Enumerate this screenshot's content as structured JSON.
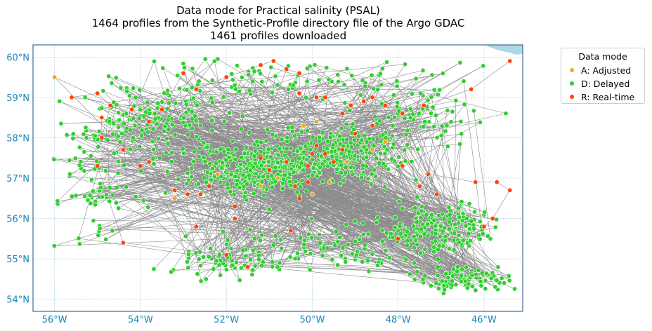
{
  "title": {
    "line1": "Data mode for Practical salinity (PSAL)",
    "line2": "1464 profiles from the Synthetic-Profile directory file of the Argo GDAC",
    "line3": "1461 profiles downloaded"
  },
  "legend": {
    "title": "Data mode",
    "items": [
      {
        "label": "A: Adjusted",
        "color": "#f5a623"
      },
      {
        "label": "D: Delayed",
        "color": "#32cd32"
      },
      {
        "label": "R: Real-time",
        "color": "#ff4500"
      }
    ]
  },
  "chart_data": {
    "type": "scatter",
    "x_ticks": [
      -56,
      -54,
      -52,
      -50,
      -48,
      -46
    ],
    "x_tick_labels": [
      "56°W",
      "54°W",
      "52°W",
      "50°W",
      "48°W",
      "46°W"
    ],
    "y_ticks": [
      54,
      55,
      56,
      57,
      58,
      59,
      60
    ],
    "y_tick_labels": [
      "54°N",
      "55°N",
      "56°N",
      "57°N",
      "58°N",
      "59°N",
      "60°N"
    ],
    "xlim": [
      -56.5,
      -45.1
    ],
    "ylim": [
      53.7,
      60.3
    ],
    "grid": true,
    "colors": {
      "adjusted": "#f5a623",
      "delayed": "#32cd32",
      "realtime": "#ff4500",
      "track": "#8c8c8c",
      "land": "#add8e6",
      "axis": "#1f4e79",
      "tick": "#1a85b8"
    },
    "series": [
      {
        "name": "A: Adjusted",
        "points": [
          [
            -56.0,
            59.5
          ],
          [
            -53.2,
            56.5
          ],
          [
            -52.2,
            57.1
          ],
          [
            -50.2,
            58.3
          ],
          [
            -49.9,
            58.4
          ],
          [
            -50.0,
            56.6
          ],
          [
            -49.2,
            57.4
          ],
          [
            -48.6,
            57.7
          ],
          [
            -50.8,
            57.0
          ],
          [
            -51.2,
            56.8
          ],
          [
            -49.6,
            56.9
          ],
          [
            -48.3,
            57.9
          ]
        ]
      },
      {
        "name": "R: Real-time",
        "points": [
          [
            -55.6,
            59.0
          ],
          [
            -55.0,
            59.1
          ],
          [
            -54.7,
            58.8
          ],
          [
            -54.9,
            58.0
          ],
          [
            -54.9,
            58.5
          ],
          [
            -54.2,
            58.7
          ],
          [
            -53.8,
            58.4
          ],
          [
            -53.5,
            58.7
          ],
          [
            -53.0,
            59.6
          ],
          [
            -52.7,
            59.2
          ],
          [
            -52.0,
            59.5
          ],
          [
            -51.2,
            59.8
          ],
          [
            -50.9,
            59.9
          ],
          [
            -50.6,
            59.7
          ],
          [
            -50.3,
            59.6
          ],
          [
            -50.3,
            59.1
          ],
          [
            -49.9,
            59.0
          ],
          [
            -49.7,
            59.0
          ],
          [
            -49.3,
            58.6
          ],
          [
            -49.1,
            58.8
          ],
          [
            -48.8,
            58.9
          ],
          [
            -48.6,
            59.0
          ],
          [
            -48.3,
            58.8
          ],
          [
            -47.9,
            58.6
          ],
          [
            -47.4,
            58.8
          ],
          [
            -46.3,
            59.2
          ],
          [
            -45.4,
            59.9
          ],
          [
            -54.4,
            57.7
          ],
          [
            -54.0,
            57.3
          ],
          [
            -53.8,
            57.4
          ],
          [
            -52.6,
            56.6
          ],
          [
            -52.4,
            56.8
          ],
          [
            -52.9,
            56.6
          ],
          [
            -53.2,
            56.7
          ],
          [
            -51.8,
            56.3
          ],
          [
            -51.2,
            57.5
          ],
          [
            -51.0,
            57.2
          ],
          [
            -50.6,
            57.4
          ],
          [
            -50.4,
            56.8
          ],
          [
            -50.3,
            56.5
          ],
          [
            -50.1,
            56.9
          ],
          [
            -50.0,
            57.6
          ],
          [
            -49.9,
            57.8
          ],
          [
            -49.7,
            57.6
          ],
          [
            -49.5,
            57.4
          ],
          [
            -49.3,
            57.7
          ],
          [
            -49.0,
            58.1
          ],
          [
            -48.6,
            58.3
          ],
          [
            -47.9,
            57.3
          ],
          [
            -47.5,
            56.8
          ],
          [
            -47.3,
            57.1
          ],
          [
            -46.2,
            56.9
          ],
          [
            -45.7,
            56.9
          ],
          [
            -45.4,
            56.7
          ],
          [
            -45.8,
            56.0
          ],
          [
            -46.0,
            55.8
          ],
          [
            -55.0,
            57.3
          ],
          [
            -54.4,
            55.4
          ],
          [
            -52.0,
            55.1
          ],
          [
            -51.5,
            54.8
          ],
          [
            -51.8,
            56.0
          ],
          [
            -50.5,
            55.7
          ],
          [
            -52.7,
            55.8
          ],
          [
            -47.1,
            56.6
          ],
          [
            -48.0,
            55.5
          ],
          [
            -50.1,
            57.3
          ]
        ]
      },
      {
        "name": "D: Delayed",
        "generated_count": 1380,
        "seed": 7
      }
    ]
  }
}
